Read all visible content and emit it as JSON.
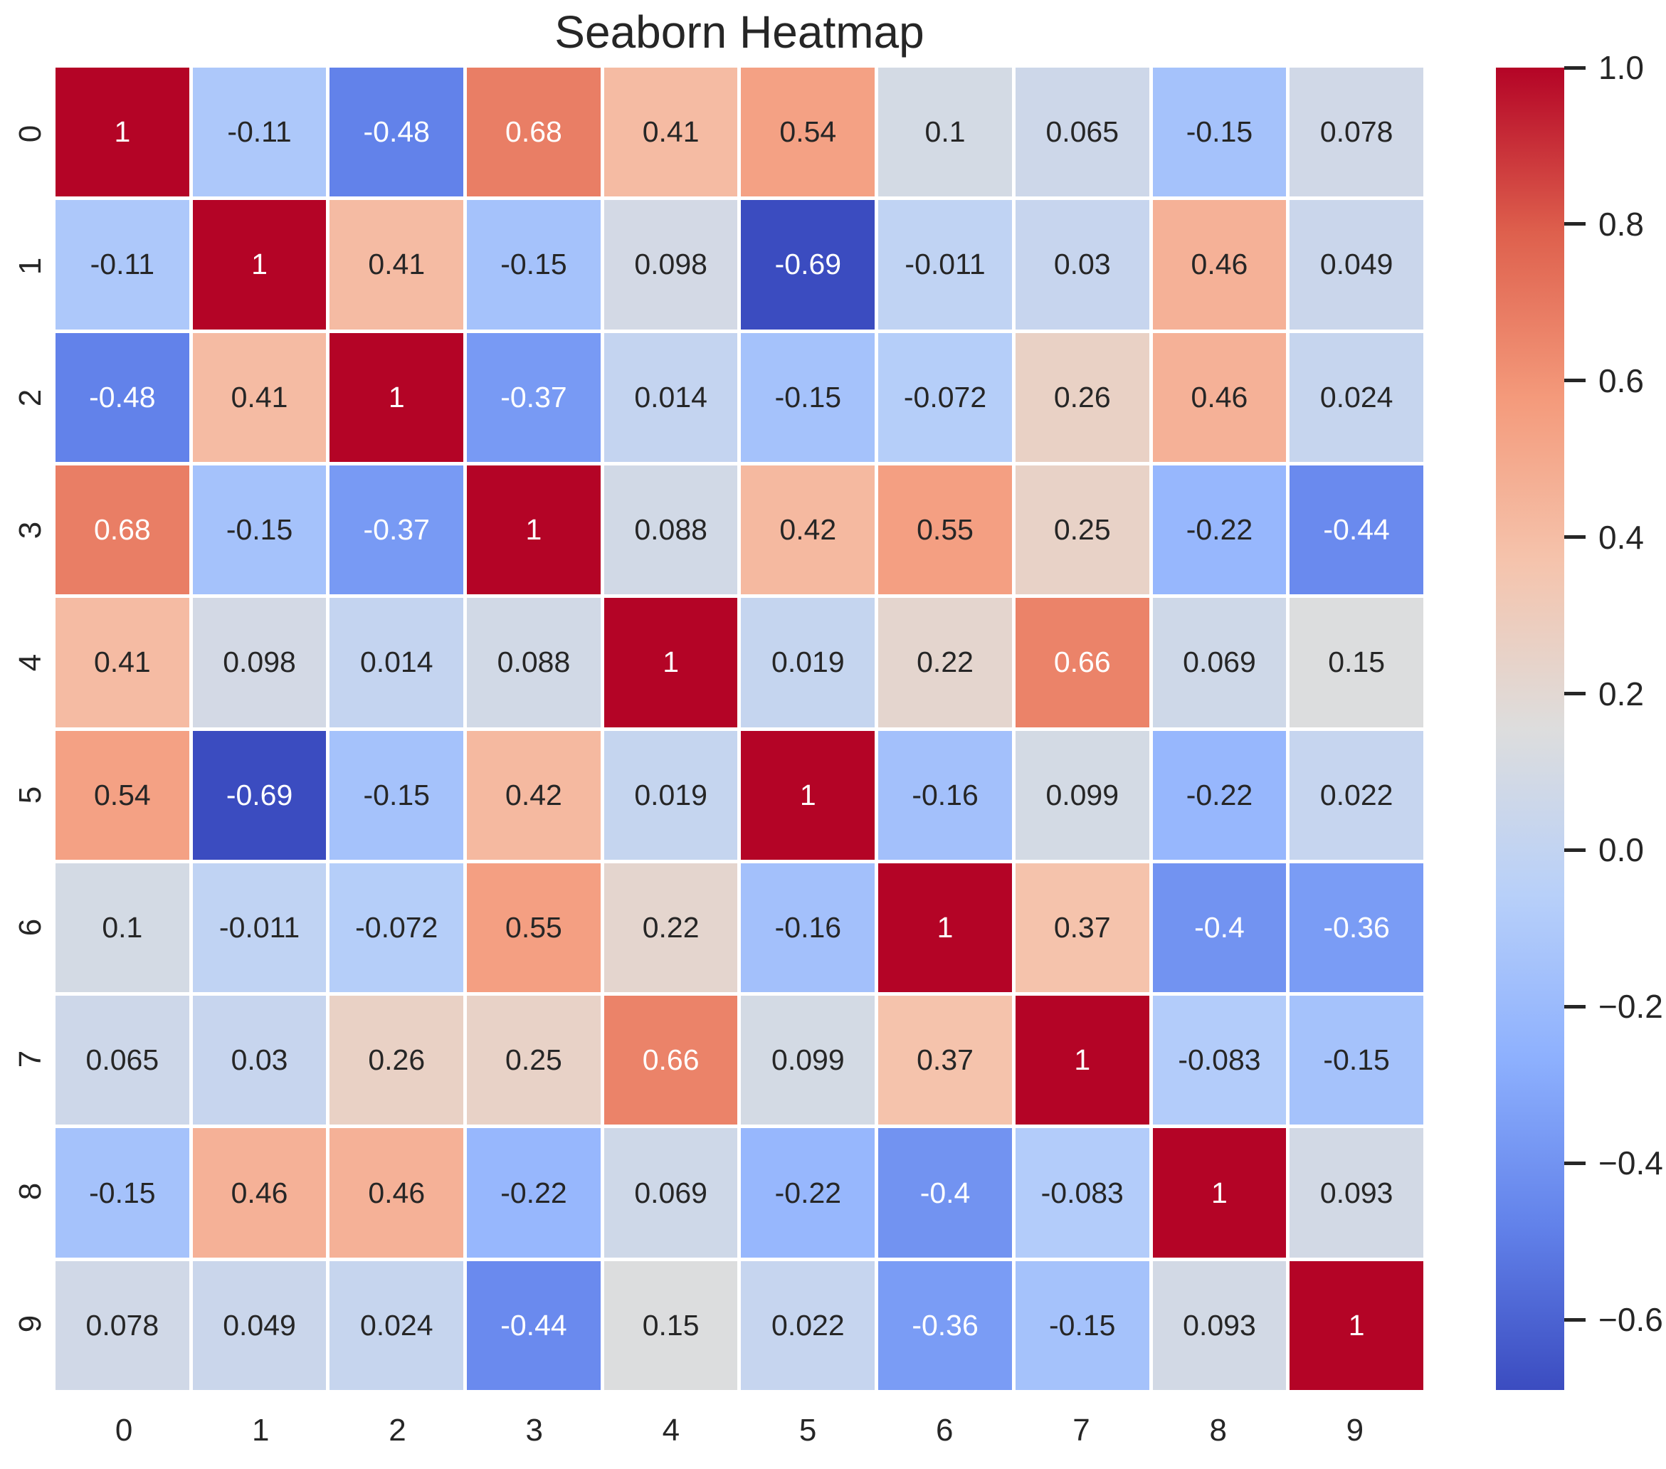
{
  "chart_data": {
    "type": "heatmap",
    "title": "Seaborn Heatmap",
    "x_categories": [
      "0",
      "1",
      "2",
      "3",
      "4",
      "5",
      "6",
      "7",
      "8",
      "9"
    ],
    "y_categories": [
      "0",
      "1",
      "2",
      "3",
      "4",
      "5",
      "6",
      "7",
      "8",
      "9"
    ],
    "values": [
      [
        1,
        -0.11,
        -0.48,
        0.68,
        0.41,
        0.54,
        0.1,
        0.065,
        -0.15,
        0.078
      ],
      [
        -0.11,
        1,
        0.41,
        -0.15,
        0.098,
        -0.69,
        -0.011,
        0.03,
        0.46,
        0.049
      ],
      [
        -0.48,
        0.41,
        1,
        -0.37,
        0.014,
        -0.15,
        -0.072,
        0.26,
        0.46,
        0.024
      ],
      [
        0.68,
        -0.15,
        -0.37,
        1,
        0.088,
        0.42,
        0.55,
        0.25,
        -0.22,
        -0.44
      ],
      [
        0.41,
        0.098,
        0.014,
        0.088,
        1,
        0.019,
        0.22,
        0.66,
        0.069,
        0.15
      ],
      [
        0.54,
        -0.69,
        -0.15,
        0.42,
        0.019,
        1,
        -0.16,
        0.099,
        -0.22,
        0.022
      ],
      [
        0.1,
        -0.011,
        -0.072,
        0.55,
        0.22,
        -0.16,
        1,
        0.37,
        -0.4,
        -0.36
      ],
      [
        0.065,
        0.03,
        0.26,
        0.25,
        0.66,
        0.099,
        0.37,
        1,
        -0.083,
        -0.15
      ],
      [
        -0.15,
        0.46,
        0.46,
        -0.22,
        0.069,
        -0.22,
        -0.4,
        -0.083,
        1,
        0.093
      ],
      [
        0.078,
        0.049,
        0.024,
        -0.44,
        0.15,
        0.022,
        -0.36,
        -0.15,
        0.093,
        1
      ]
    ],
    "annotated": true,
    "grid": false,
    "legend_position": "right-colorbar",
    "colorbar": {
      "vmin": -0.69,
      "vmax": 1.0,
      "tick_values": [
        1.0,
        0.8,
        0.6,
        0.4,
        0.2,
        0.0,
        -0.2,
        -0.4,
        -0.6
      ],
      "tick_labels": [
        "1.0",
        "0.8",
        "0.6",
        "0.4",
        "0.2",
        "0.0",
        "−0.2",
        "−0.4",
        "−0.6"
      ]
    },
    "colormap": {
      "name": "coolwarm",
      "anchors": [
        "#3b4cc0",
        "#6282ea",
        "#8db0fe",
        "#b8d0f9",
        "#dddddd",
        "#f5c4ad",
        "#f49a7b",
        "#de604d",
        "#b40426"
      ]
    }
  },
  "colors": {
    "text_dark": "#262626",
    "text_light": "#ffffff",
    "background": "#ffffff"
  }
}
